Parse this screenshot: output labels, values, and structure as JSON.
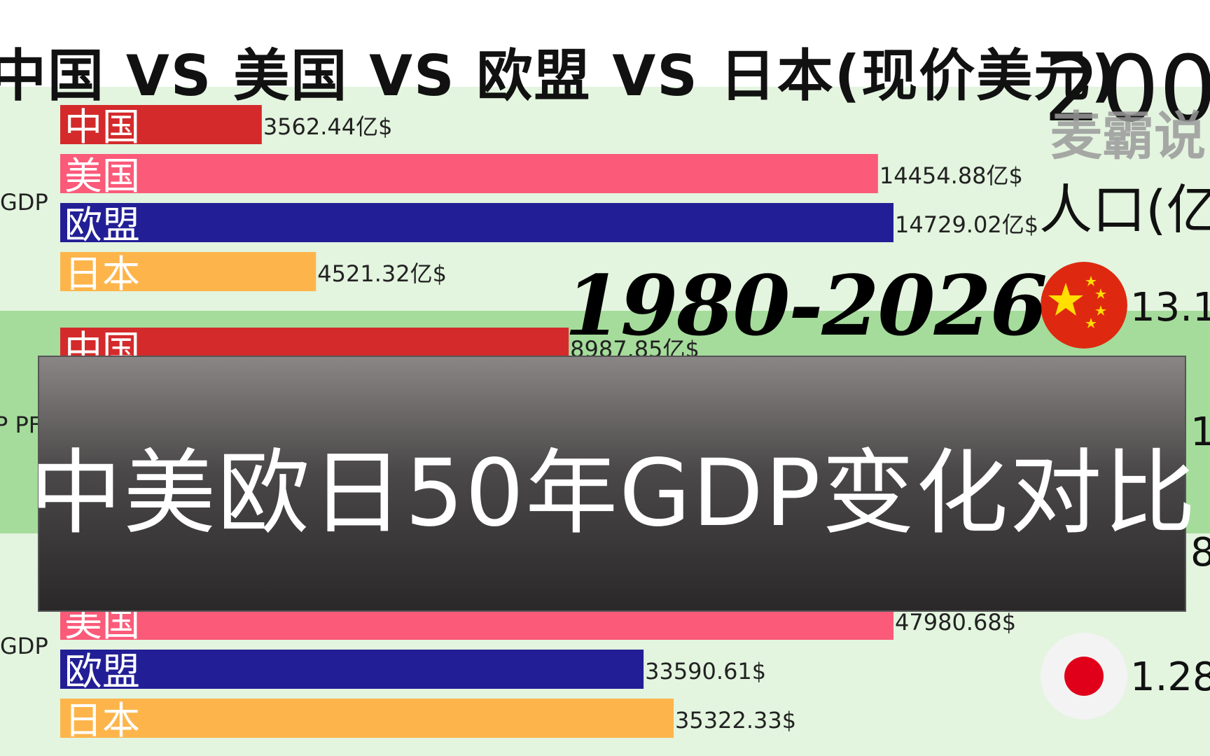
{
  "title": "中国 VS 美国 VS 欧盟 VS 日本(现价美元)",
  "year": "200",
  "watermark": "麦霸说",
  "population_label": "人口(亿",
  "range": "1980-2026",
  "overlay_text": "中美欧日50年GDP变化对比",
  "colors": {
    "china": "#d42a2b",
    "usa": "#fb5a79",
    "eu": "#221f96",
    "japan": "#fdb54b",
    "band_light": "#e3f4df",
    "band_mid": "#a5dc9b"
  },
  "populations": [
    {
      "flag": "china-flag-icon",
      "value": "13.1"
    },
    {
      "flag": "china-flag-icon",
      "value": "1"
    },
    {
      "flag": "usa-flag-icon",
      "value": "8"
    },
    {
      "flag": "japan-flag-icon",
      "value": "1.28"
    }
  ],
  "chart_data": [
    {
      "type": "bar",
      "section_label": "GDP",
      "categories": [
        "中国",
        "美国",
        "欧盟",
        "日本"
      ],
      "values": [
        3562.44,
        14454.88,
        14729.02,
        4521.32
      ],
      "value_labels": [
        "3562.44亿$",
        "14454.88亿$",
        "14729.02亿$",
        "4521.32亿$"
      ]
    },
    {
      "type": "bar",
      "section_label": "P PF",
      "categories": [
        "中国"
      ],
      "values": [
        8987.85
      ],
      "value_labels": [
        "8987.85亿$"
      ]
    },
    {
      "type": "bar",
      "section_label": "GDP",
      "categories": [
        "美国",
        "欧盟",
        "日本"
      ],
      "values": [
        47980.68,
        33590.61,
        35322.33
      ],
      "value_labels": [
        "47980.68$",
        "33590.61$",
        "35322.33$"
      ]
    }
  ]
}
